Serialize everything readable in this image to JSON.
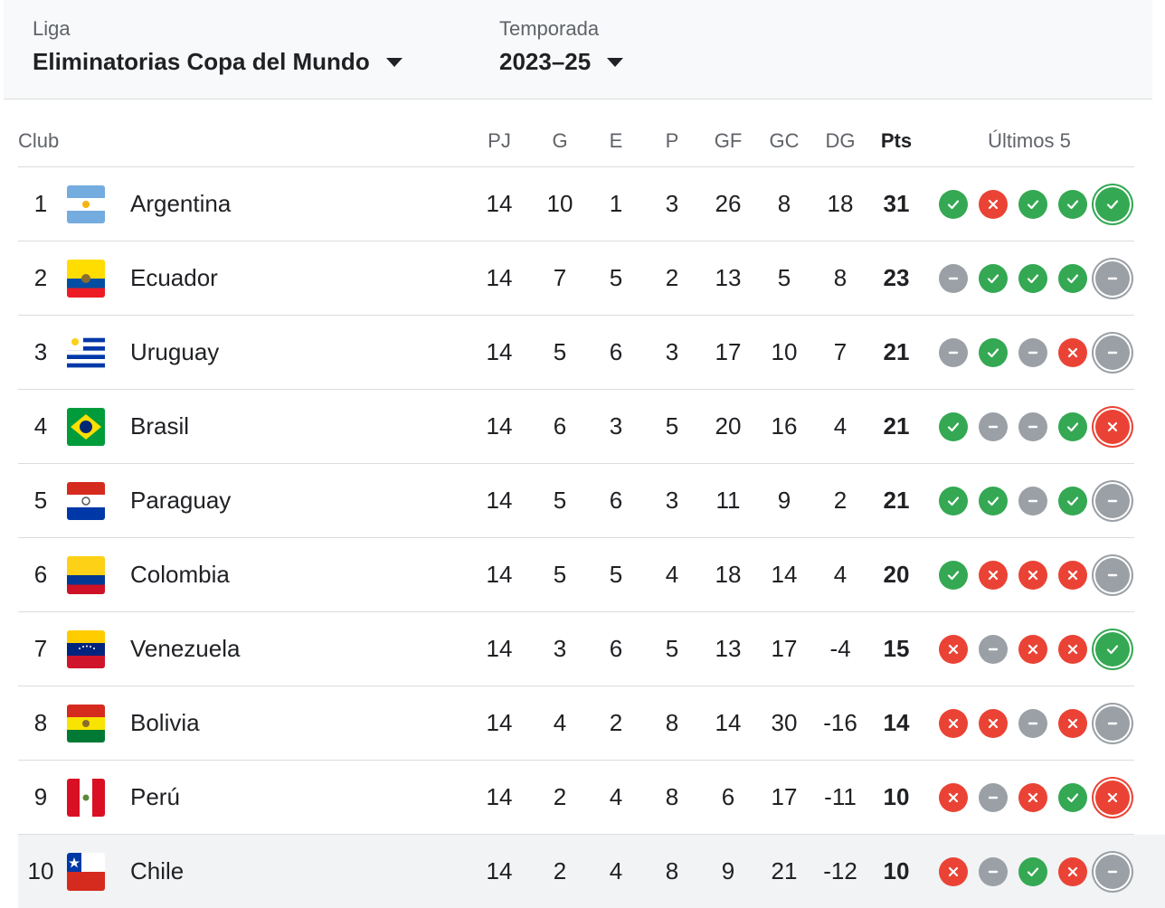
{
  "filters": {
    "league_label": "Liga",
    "league_value": "Eliminatorias Copa del Mundo",
    "season_label": "Temporada",
    "season_value": "2023–25"
  },
  "headers": {
    "club": "Club",
    "pj": "PJ",
    "g": "G",
    "e": "E",
    "p": "P",
    "gf": "GF",
    "gc": "GC",
    "dg": "DG",
    "pts": "Pts",
    "last5": "Últimos 5"
  },
  "colors": {
    "win": "#34a853",
    "loss": "#ea4335",
    "draw": "#9aa0a6"
  },
  "rows": [
    {
      "pos": "1",
      "team": "Argentina",
      "flag": "argentina-flag-icon",
      "pj": "14",
      "g": "10",
      "e": "1",
      "p": "3",
      "gf": "26",
      "gc": "8",
      "dg": "18",
      "pts": "31",
      "form": [
        "W",
        "L",
        "W",
        "W",
        "W"
      ]
    },
    {
      "pos": "2",
      "team": "Ecuador",
      "flag": "ecuador-flag-icon",
      "pj": "14",
      "g": "7",
      "e": "5",
      "p": "2",
      "gf": "13",
      "gc": "5",
      "dg": "8",
      "pts": "23",
      "form": [
        "D",
        "W",
        "W",
        "W",
        "D"
      ]
    },
    {
      "pos": "3",
      "team": "Uruguay",
      "flag": "uruguay-flag-icon",
      "pj": "14",
      "g": "5",
      "e": "6",
      "p": "3",
      "gf": "17",
      "gc": "10",
      "dg": "7",
      "pts": "21",
      "form": [
        "D",
        "W",
        "D",
        "L",
        "D"
      ]
    },
    {
      "pos": "4",
      "team": "Brasil",
      "flag": "brasil-flag-icon",
      "pj": "14",
      "g": "6",
      "e": "3",
      "p": "5",
      "gf": "20",
      "gc": "16",
      "dg": "4",
      "pts": "21",
      "form": [
        "W",
        "D",
        "D",
        "W",
        "L"
      ]
    },
    {
      "pos": "5",
      "team": "Paraguay",
      "flag": "paraguay-flag-icon",
      "pj": "14",
      "g": "5",
      "e": "6",
      "p": "3",
      "gf": "11",
      "gc": "9",
      "dg": "2",
      "pts": "21",
      "form": [
        "W",
        "W",
        "D",
        "W",
        "D"
      ]
    },
    {
      "pos": "6",
      "team": "Colombia",
      "flag": "colombia-flag-icon",
      "pj": "14",
      "g": "5",
      "e": "5",
      "p": "4",
      "gf": "18",
      "gc": "14",
      "dg": "4",
      "pts": "20",
      "form": [
        "W",
        "L",
        "L",
        "L",
        "D"
      ]
    },
    {
      "pos": "7",
      "team": "Venezuela",
      "flag": "venezuela-flag-icon",
      "pj": "14",
      "g": "3",
      "e": "6",
      "p": "5",
      "gf": "13",
      "gc": "17",
      "dg": "-4",
      "pts": "15",
      "form": [
        "L",
        "D",
        "L",
        "L",
        "W"
      ]
    },
    {
      "pos": "8",
      "team": "Bolivia",
      "flag": "bolivia-flag-icon",
      "pj": "14",
      "g": "4",
      "e": "2",
      "p": "8",
      "gf": "14",
      "gc": "30",
      "dg": "-16",
      "pts": "14",
      "form": [
        "L",
        "L",
        "D",
        "L",
        "D"
      ]
    },
    {
      "pos": "9",
      "team": "Perú",
      "flag": "peru-flag-icon",
      "pj": "14",
      "g": "2",
      "e": "4",
      "p": "8",
      "gf": "6",
      "gc": "17",
      "dg": "-11",
      "pts": "10",
      "form": [
        "L",
        "D",
        "L",
        "W",
        "L"
      ]
    },
    {
      "pos": "10",
      "team": "Chile",
      "flag": "chile-flag-icon",
      "pj": "14",
      "g": "2",
      "e": "4",
      "p": "8",
      "gf": "9",
      "gc": "21",
      "dg": "-12",
      "pts": "10",
      "form": [
        "L",
        "D",
        "W",
        "L",
        "D"
      ]
    }
  ]
}
